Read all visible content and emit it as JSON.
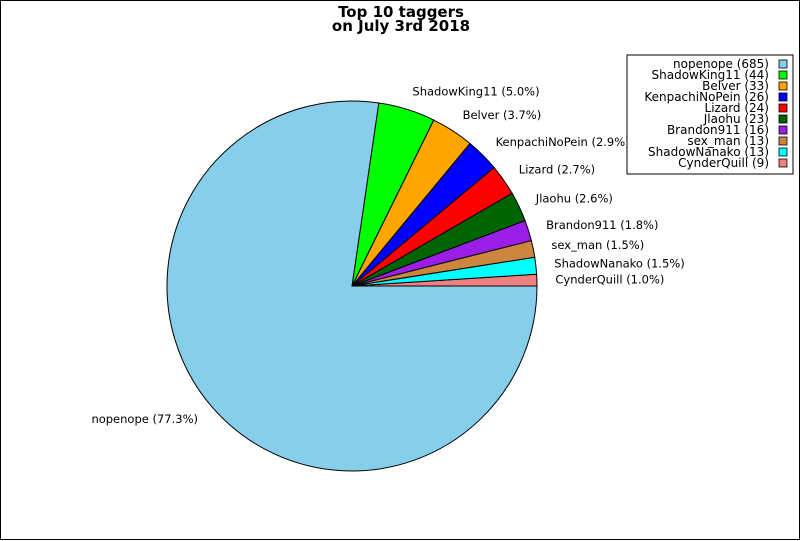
{
  "chart_data": {
    "type": "pie",
    "title": "Top 10 taggers",
    "subtitle": "on July 3rd 2018",
    "legend_position": "top-right",
    "slices": [
      {
        "name": "nopenope",
        "value": 685,
        "percent_label": "nopenope (77.3%)",
        "legend_label": "nopenope (685)",
        "color": "#87ceeb"
      },
      {
        "name": "ShadowKing11",
        "value": 44,
        "percent_label": "ShadowKing11 (5.0%)",
        "legend_label": "ShadowKing11 (44)",
        "color": "#00ff00"
      },
      {
        "name": "Belver",
        "value": 33,
        "percent_label": "Belver (3.7%)",
        "legend_label": "Belver (33)",
        "color": "#ffa500"
      },
      {
        "name": "KenpachiNoPein",
        "value": 26,
        "percent_label": "KenpachiNoPein (2.9%)",
        "legend_label": "KenpachiNoPein (26)",
        "color": "#0000ff"
      },
      {
        "name": "Lizard",
        "value": 24,
        "percent_label": "Lizard (2.7%)",
        "legend_label": "Lizard (24)",
        "color": "#ff0000"
      },
      {
        "name": "Jlaohu",
        "value": 23,
        "percent_label": "Jlaohu (2.6%)",
        "legend_label": "Jlaohu (23)",
        "color": "#006400"
      },
      {
        "name": "Brandon911",
        "value": 16,
        "percent_label": "Brandon911 (1.8%)",
        "legend_label": "Brandon911 (16)",
        "color": "#9b1ee6"
      },
      {
        "name": "sex_man",
        "value": 13,
        "percent_label": "sex_man (1.5%)",
        "legend_label": "sex_man (13)",
        "color": "#cd853f"
      },
      {
        "name": "ShadowNanako",
        "value": 13,
        "percent_label": "ShadowNanako (1.5%)",
        "legend_label": "ShadowNanako (13)",
        "color": "#00ffff"
      },
      {
        "name": "CynderQuill",
        "value": 9,
        "percent_label": "CynderQuill (1.0%)",
        "legend_label": "CynderQuill (9)",
        "color": "#f08080"
      }
    ]
  }
}
